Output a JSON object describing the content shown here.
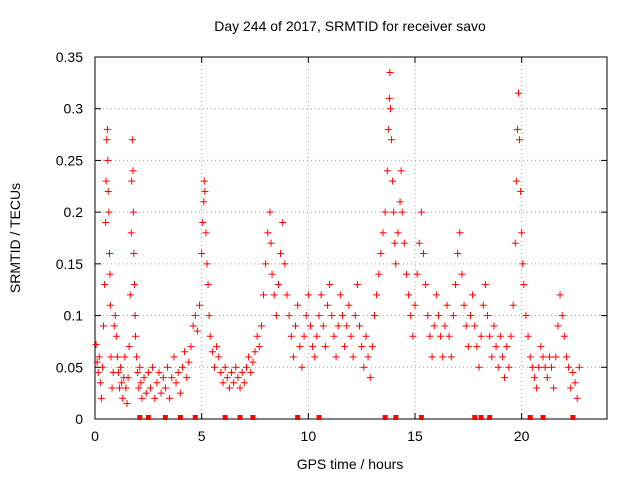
{
  "chart_data": {
    "type": "scatter",
    "title": "Day 244 of 2017, SRMTID for receiver savo",
    "xlabel": "GPS time / hours",
    "ylabel": "SRMTID / TECUs",
    "xlim": [
      0,
      24
    ],
    "ylim": [
      0,
      0.35
    ],
    "x_ticks": [
      0,
      5,
      10,
      15,
      20
    ],
    "x_tick_labels": [
      "0",
      "5",
      "10",
      "15",
      "20"
    ],
    "y_ticks": [
      0,
      0.05,
      0.1,
      0.15,
      0.2,
      0.25,
      0.3,
      0.35
    ],
    "y_tick_labels": [
      "0",
      "0.05",
      "0.1",
      "0.15",
      "0.2",
      "0.25",
      "0.3",
      "0.35"
    ],
    "grid": true,
    "marker": "plus",
    "color": "#ff0000",
    "zero_markers_x": [
      2.1,
      2.5,
      3.3,
      4.0,
      4.7,
      6.1,
      6.8,
      7.4,
      9.5,
      10.5,
      13.6,
      14.1,
      15.3,
      17.8,
      18.1,
      18.5,
      20.4,
      21.0,
      22.4
    ],
    "series": [
      {
        "name": "SRMTID",
        "points": [
          [
            0.05,
            0.072
          ],
          [
            0.1,
            0.055
          ],
          [
            0.15,
            0.045
          ],
          [
            0.2,
            0.06
          ],
          [
            0.25,
            0.035
          ],
          [
            0.3,
            0.02
          ],
          [
            0.35,
            0.05
          ],
          [
            0.4,
            0.09
          ],
          [
            0.45,
            0.13
          ],
          [
            0.5,
            0.19
          ],
          [
            0.52,
            0.23
          ],
          [
            0.55,
            0.27
          ],
          [
            0.58,
            0.28
          ],
          [
            0.6,
            0.25
          ],
          [
            0.62,
            0.22
          ],
          [
            0.65,
            0.2
          ],
          [
            0.68,
            0.16
          ],
          [
            0.7,
            0.14
          ],
          [
            0.72,
            0.11
          ],
          [
            0.75,
            0.06
          ],
          [
            0.8,
            0.03
          ],
          [
            0.85,
            0.045
          ],
          [
            0.9,
            0.09
          ],
          [
            0.95,
            0.1
          ],
          [
            1.0,
            0.08
          ],
          [
            1.05,
            0.06
          ],
          [
            1.1,
            0.045
          ],
          [
            1.15,
            0.03
          ],
          [
            1.2,
            0.05
          ],
          [
            1.25,
            0.035
          ],
          [
            1.3,
            0.02
          ],
          [
            1.35,
            0.04
          ],
          [
            1.4,
            0.06
          ],
          [
            1.45,
            0.03
          ],
          [
            1.5,
            0.015
          ],
          [
            1.55,
            0.04
          ],
          [
            1.6,
            0.07
          ],
          [
            1.65,
            0.12
          ],
          [
            1.7,
            0.18
          ],
          [
            1.72,
            0.23
          ],
          [
            1.75,
            0.27
          ],
          [
            1.78,
            0.24
          ],
          [
            1.8,
            0.2
          ],
          [
            1.82,
            0.16
          ],
          [
            1.85,
            0.13
          ],
          [
            1.88,
            0.1
          ],
          [
            1.9,
            0.08
          ],
          [
            1.95,
            0.06
          ],
          [
            2.0,
            0.045
          ],
          [
            2.05,
            0.03
          ],
          [
            2.1,
            0.05
          ],
          [
            2.15,
            0.035
          ],
          [
            2.2,
            0.02
          ],
          [
            2.3,
            0.04
          ],
          [
            2.4,
            0.025
          ],
          [
            2.5,
            0.045
          ],
          [
            2.6,
            0.03
          ],
          [
            2.7,
            0.05
          ],
          [
            2.8,
            0.02
          ],
          [
            2.9,
            0.035
          ],
          [
            3.0,
            0.045
          ],
          [
            3.1,
            0.025
          ],
          [
            3.2,
            0.04
          ],
          [
            3.3,
            0.03
          ],
          [
            3.4,
            0.05
          ],
          [
            3.5,
            0.02
          ],
          [
            3.6,
            0.04
          ],
          [
            3.7,
            0.06
          ],
          [
            3.8,
            0.035
          ],
          [
            3.9,
            0.045
          ],
          [
            4.0,
            0.025
          ],
          [
            4.1,
            0.05
          ],
          [
            4.2,
            0.065
          ],
          [
            4.3,
            0.04
          ],
          [
            4.4,
            0.055
          ],
          [
            4.5,
            0.07
          ],
          [
            4.6,
            0.09
          ],
          [
            4.7,
            0.1
          ],
          [
            4.8,
            0.085
          ],
          [
            4.9,
            0.11
          ],
          [
            5.0,
            0.16
          ],
          [
            5.05,
            0.19
          ],
          [
            5.1,
            0.21
          ],
          [
            5.12,
            0.23
          ],
          [
            5.15,
            0.22
          ],
          [
            5.2,
            0.18
          ],
          [
            5.25,
            0.15
          ],
          [
            5.3,
            0.13
          ],
          [
            5.35,
            0.1
          ],
          [
            5.4,
            0.08
          ],
          [
            5.5,
            0.065
          ],
          [
            5.6,
            0.05
          ],
          [
            5.7,
            0.07
          ],
          [
            5.8,
            0.06
          ],
          [
            5.9,
            0.045
          ],
          [
            6.0,
            0.035
          ],
          [
            6.1,
            0.05
          ],
          [
            6.2,
            0.04
          ],
          [
            6.3,
            0.03
          ],
          [
            6.4,
            0.045
          ],
          [
            6.5,
            0.035
          ],
          [
            6.6,
            0.05
          ],
          [
            6.7,
            0.04
          ],
          [
            6.8,
            0.03
          ],
          [
            6.9,
            0.045
          ],
          [
            7.0,
            0.035
          ],
          [
            7.1,
            0.05
          ],
          [
            7.2,
            0.06
          ],
          [
            7.3,
            0.045
          ],
          [
            7.4,
            0.055
          ],
          [
            7.5,
            0.065
          ],
          [
            7.6,
            0.08
          ],
          [
            7.7,
            0.07
          ],
          [
            7.8,
            0.09
          ],
          [
            7.9,
            0.12
          ],
          [
            8.0,
            0.15
          ],
          [
            8.1,
            0.18
          ],
          [
            8.2,
            0.2
          ],
          [
            8.25,
            0.17
          ],
          [
            8.3,
            0.14
          ],
          [
            8.4,
            0.12
          ],
          [
            8.5,
            0.1
          ],
          [
            8.6,
            0.13
          ],
          [
            8.7,
            0.16
          ],
          [
            8.8,
            0.19
          ],
          [
            8.9,
            0.15
          ],
          [
            9.0,
            0.12
          ],
          [
            9.1,
            0.1
          ],
          [
            9.2,
            0.08
          ],
          [
            9.3,
            0.06
          ],
          [
            9.4,
            0.09
          ],
          [
            9.5,
            0.11
          ],
          [
            9.6,
            0.07
          ],
          [
            9.7,
            0.05
          ],
          [
            9.8,
            0.08
          ],
          [
            9.9,
            0.1
          ],
          [
            10.0,
            0.12
          ],
          [
            10.1,
            0.09
          ],
          [
            10.2,
            0.07
          ],
          [
            10.3,
            0.06
          ],
          [
            10.4,
            0.08
          ],
          [
            10.5,
            0.1
          ],
          [
            10.6,
            0.12
          ],
          [
            10.7,
            0.09
          ],
          [
            10.8,
            0.07
          ],
          [
            10.9,
            0.11
          ],
          [
            11.0,
            0.13
          ],
          [
            11.1,
            0.1
          ],
          [
            11.2,
            0.08
          ],
          [
            11.3,
            0.06
          ],
          [
            11.4,
            0.09
          ],
          [
            11.5,
            0.12
          ],
          [
            11.6,
            0.1
          ],
          [
            11.7,
            0.07
          ],
          [
            11.8,
            0.09
          ],
          [
            11.9,
            0.11
          ],
          [
            12.0,
            0.08
          ],
          [
            12.1,
            0.06
          ],
          [
            12.2,
            0.1
          ],
          [
            12.3,
            0.13
          ],
          [
            12.4,
            0.09
          ],
          [
            12.5,
            0.07
          ],
          [
            12.6,
            0.05
          ],
          [
            12.7,
            0.08
          ],
          [
            12.8,
            0.06
          ],
          [
            12.9,
            0.04
          ],
          [
            13.0,
            0.07
          ],
          [
            13.1,
            0.1
          ],
          [
            13.2,
            0.12
          ],
          [
            13.3,
            0.14
          ],
          [
            13.4,
            0.16
          ],
          [
            13.5,
            0.18
          ],
          [
            13.6,
            0.2
          ],
          [
            13.7,
            0.24
          ],
          [
            13.75,
            0.28
          ],
          [
            13.8,
            0.31
          ],
          [
            13.82,
            0.335
          ],
          [
            13.85,
            0.3
          ],
          [
            13.9,
            0.27
          ],
          [
            13.95,
            0.23
          ],
          [
            14.0,
            0.2
          ],
          [
            14.05,
            0.17
          ],
          [
            14.1,
            0.15
          ],
          [
            14.2,
            0.18
          ],
          [
            14.3,
            0.21
          ],
          [
            14.35,
            0.24
          ],
          [
            14.4,
            0.2
          ],
          [
            14.5,
            0.17
          ],
          [
            14.6,
            0.14
          ],
          [
            14.7,
            0.12
          ],
          [
            14.8,
            0.1
          ],
          [
            14.9,
            0.08
          ],
          [
            15.0,
            0.11
          ],
          [
            15.1,
            0.14
          ],
          [
            15.2,
            0.17
          ],
          [
            15.3,
            0.2
          ],
          [
            15.4,
            0.16
          ],
          [
            15.5,
            0.13
          ],
          [
            15.6,
            0.1
          ],
          [
            15.7,
            0.08
          ],
          [
            15.8,
            0.06
          ],
          [
            15.9,
            0.09
          ],
          [
            16.0,
            0.12
          ],
          [
            16.1,
            0.1
          ],
          [
            16.2,
            0.08
          ],
          [
            16.3,
            0.06
          ],
          [
            16.4,
            0.09
          ],
          [
            16.5,
            0.11
          ],
          [
            16.6,
            0.08
          ],
          [
            16.7,
            0.06
          ],
          [
            16.8,
            0.1
          ],
          [
            16.9,
            0.13
          ],
          [
            17.0,
            0.16
          ],
          [
            17.1,
            0.18
          ],
          [
            17.2,
            0.14
          ],
          [
            17.3,
            0.11
          ],
          [
            17.4,
            0.09
          ],
          [
            17.5,
            0.07
          ],
          [
            17.6,
            0.1
          ],
          [
            17.7,
            0.12
          ],
          [
            17.8,
            0.09
          ],
          [
            17.9,
            0.07
          ],
          [
            18.0,
            0.05
          ],
          [
            18.1,
            0.08
          ],
          [
            18.2,
            0.11
          ],
          [
            18.3,
            0.13
          ],
          [
            18.4,
            0.1
          ],
          [
            18.5,
            0.08
          ],
          [
            18.6,
            0.06
          ],
          [
            18.7,
            0.09
          ],
          [
            18.8,
            0.07
          ],
          [
            18.9,
            0.05
          ],
          [
            19.0,
            0.08
          ],
          [
            19.1,
            0.06
          ],
          [
            19.2,
            0.04
          ],
          [
            19.3,
            0.07
          ],
          [
            19.4,
            0.05
          ],
          [
            19.5,
            0.08
          ],
          [
            19.6,
            0.11
          ],
          [
            19.7,
            0.17
          ],
          [
            19.75,
            0.23
          ],
          [
            19.8,
            0.28
          ],
          [
            19.85,
            0.315
          ],
          [
            19.9,
            0.27
          ],
          [
            19.95,
            0.22
          ],
          [
            20.0,
            0.18
          ],
          [
            20.05,
            0.15
          ],
          [
            20.1,
            0.13
          ],
          [
            20.2,
            0.1
          ],
          [
            20.3,
            0.08
          ],
          [
            20.4,
            0.06
          ],
          [
            20.5,
            0.05
          ],
          [
            20.6,
            0.04
          ],
          [
            20.7,
            0.03
          ],
          [
            20.8,
            0.05
          ],
          [
            20.9,
            0.07
          ],
          [
            21.0,
            0.06
          ],
          [
            21.1,
            0.05
          ],
          [
            21.2,
            0.04
          ],
          [
            21.3,
            0.06
          ],
          [
            21.4,
            0.05
          ],
          [
            21.5,
            0.03
          ],
          [
            21.6,
            0.06
          ],
          [
            21.7,
            0.09
          ],
          [
            21.8,
            0.12
          ],
          [
            21.9,
            0.1
          ],
          [
            22.0,
            0.08
          ],
          [
            22.1,
            0.06
          ],
          [
            22.2,
            0.05
          ],
          [
            22.3,
            0.03
          ],
          [
            22.4,
            0.045
          ],
          [
            22.5,
            0.035
          ],
          [
            22.6,
            0.02
          ],
          [
            22.7,
            0.05
          ]
        ]
      }
    ]
  }
}
